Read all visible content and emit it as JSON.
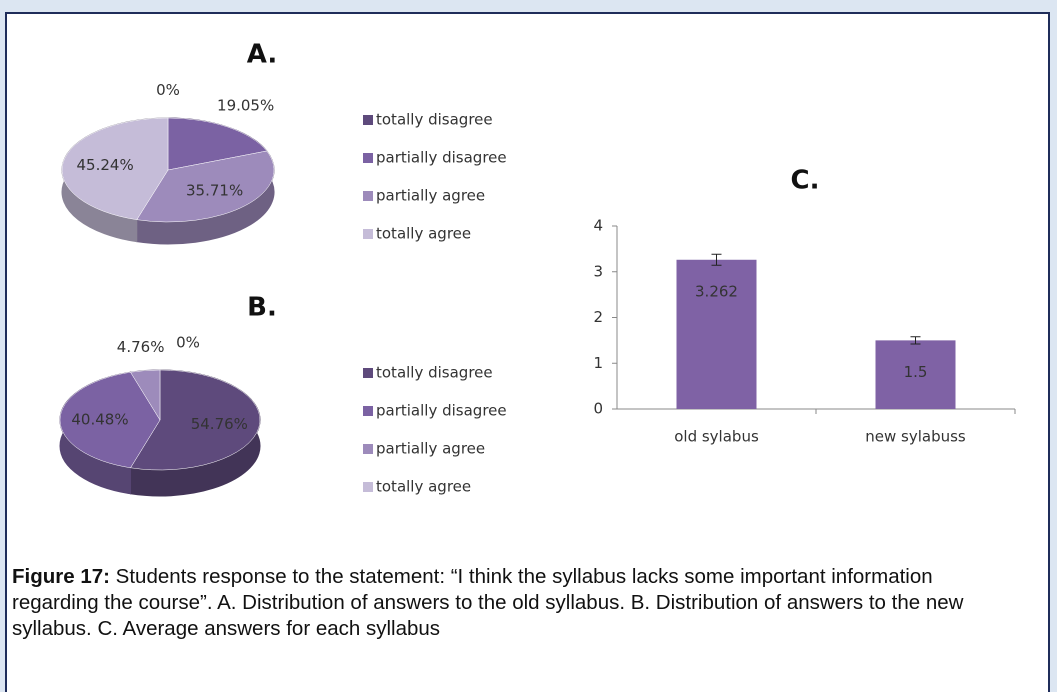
{
  "chart_data": [
    {
      "type": "pie",
      "title": "A.",
      "categories": [
        "totally disagree",
        "partially disagree",
        "partially agree",
        "totally agree"
      ],
      "values": [
        0,
        19.05,
        35.71,
        45.24
      ],
      "value_labels": [
        "0%",
        "19.05%",
        "35.71%",
        "45.24%"
      ],
      "colors": [
        "#5e4a7c",
        "#7b62a3",
        "#9d8bbb",
        "#c5bcd8"
      ]
    },
    {
      "type": "pie",
      "title": "B.",
      "categories": [
        "totally disagree",
        "partially disagree",
        "partially agree",
        "totally agree"
      ],
      "values": [
        54.76,
        40.48,
        4.76,
        0
      ],
      "value_labels": [
        "54.76%",
        "40.48%",
        "4.76%",
        "0%"
      ],
      "colors": [
        "#5e4a7c",
        "#7b62a3",
        "#9d8bbb",
        "#c5bcd8"
      ]
    },
    {
      "type": "bar",
      "title": "C.",
      "categories": [
        "old sylabus",
        "new sylabuss"
      ],
      "values": [
        3.262,
        1.5
      ],
      "errors": [
        0.12,
        0.08
      ],
      "color": "#7f62a5",
      "ylim": [
        0,
        4
      ],
      "yticks": [
        0,
        1,
        2,
        3,
        4
      ]
    }
  ],
  "caption": {
    "label": "Figure 17:",
    "text": "Students response to the statement: “I think the syllabus lacks some important information regarding the course”. A. Distribution of answers to the old syllabus. B. Distribution of answers to the new syllabus. C. Average answers for each syllabus"
  }
}
